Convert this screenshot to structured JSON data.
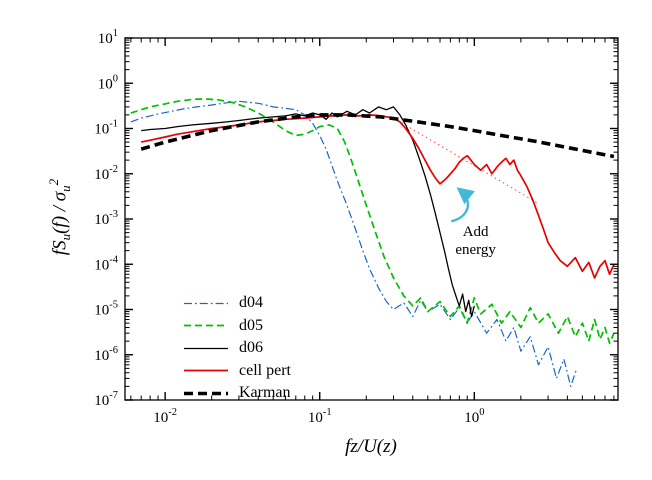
{
  "labels": {
    "xlabel": "fz/U(z)",
    "ylabel": {
      "a": "fS",
      "b": "u",
      "c": "(f) / σ",
      "d": "u",
      "e": "2"
    }
  },
  "chart_data": {
    "type": "line",
    "xscale": "log",
    "yscale": "log",
    "xlim": [
      0.0055,
      8.5
    ],
    "ylim": [
      1e-07,
      10
    ],
    "xlabel": "fz/U(z)",
    "ylabel": "fSu(f)/sigma_u^2",
    "grid": false,
    "legend_position": "lower-left-inside",
    "annotation": {
      "line1": "Add",
      "line2": "energy",
      "x": 1.02,
      "y": 0.00032,
      "arrow": {
        "x1": 0.72,
        "y1": 0.0009,
        "x2": 0.8,
        "y2": 0.0045,
        "color": "#45b8d8"
      }
    },
    "series": [
      {
        "name": "d04",
        "color": "#1a66cc",
        "width": 1.2,
        "dash": "8 3 1.8 3",
        "points": [
          [
            0.006,
            0.14
          ],
          [
            0.007,
            0.17
          ],
          [
            0.008,
            0.19
          ],
          [
            0.009,
            0.21
          ],
          [
            0.011,
            0.24
          ],
          [
            0.013,
            0.27
          ],
          [
            0.016,
            0.3
          ],
          [
            0.02,
            0.33
          ],
          [
            0.025,
            0.37
          ],
          [
            0.03,
            0.4
          ],
          [
            0.035,
            0.38
          ],
          [
            0.04,
            0.36
          ],
          [
            0.045,
            0.33
          ],
          [
            0.05,
            0.3
          ],
          [
            0.06,
            0.28
          ],
          [
            0.07,
            0.26
          ],
          [
            0.08,
            0.2
          ],
          [
            0.09,
            0.13
          ],
          [
            0.1,
            0.07
          ],
          [
            0.11,
            0.035
          ],
          [
            0.12,
            0.015
          ],
          [
            0.13,
            0.007
          ],
          [
            0.15,
            0.002
          ],
          [
            0.17,
            0.0006
          ],
          [
            0.19,
            0.0002
          ],
          [
            0.21,
            8e-05
          ],
          [
            0.24,
            3e-05
          ],
          [
            0.27,
            1.5e-05
          ],
          [
            0.3,
            1e-05
          ],
          [
            0.35,
            1.4e-05
          ],
          [
            0.4,
            7e-06
          ],
          [
            0.45,
            1.6e-05
          ],
          [
            0.5,
            9e-06
          ],
          [
            0.6,
            1.3e-05
          ],
          [
            0.7,
            6e-06
          ],
          [
            0.8,
            1.1e-05
          ],
          [
            0.9,
            5e-06
          ],
          [
            1.0,
            9e-06
          ],
          [
            1.2,
            3e-06
          ],
          [
            1.4,
            6e-06
          ],
          [
            1.6,
            2e-06
          ],
          [
            1.8,
            4e-06
          ],
          [
            2.0,
            1.2e-06
          ],
          [
            2.3,
            2.5e-06
          ],
          [
            2.6,
            6e-07
          ],
          [
            3.0,
            1.5e-06
          ],
          [
            3.4,
            3e-07
          ],
          [
            3.8,
            8e-07
          ],
          [
            4.2,
            2e-07
          ],
          [
            4.6,
            5e-07
          ]
        ]
      },
      {
        "name": "d05",
        "color": "#00c000",
        "width": 1.7,
        "dash": "7 4",
        "points": [
          [
            0.006,
            0.22
          ],
          [
            0.007,
            0.26
          ],
          [
            0.008,
            0.3
          ],
          [
            0.01,
            0.35
          ],
          [
            0.012,
            0.4
          ],
          [
            0.015,
            0.44
          ],
          [
            0.018,
            0.45
          ],
          [
            0.022,
            0.43
          ],
          [
            0.027,
            0.38
          ],
          [
            0.033,
            0.3
          ],
          [
            0.04,
            0.22
          ],
          [
            0.05,
            0.14
          ],
          [
            0.06,
            0.09
          ],
          [
            0.07,
            0.07
          ],
          [
            0.08,
            0.075
          ],
          [
            0.09,
            0.09
          ],
          [
            0.1,
            0.11
          ],
          [
            0.115,
            0.12
          ],
          [
            0.13,
            0.1
          ],
          [
            0.145,
            0.05
          ],
          [
            0.16,
            0.02
          ],
          [
            0.18,
            0.006
          ],
          [
            0.2,
            0.002
          ],
          [
            0.23,
            0.0005
          ],
          [
            0.26,
            0.00015
          ],
          [
            0.3,
            5e-05
          ],
          [
            0.35,
            2e-05
          ],
          [
            0.4,
            1.2e-05
          ],
          [
            0.45,
            1.8e-05
          ],
          [
            0.5,
            9e-06
          ],
          [
            0.6,
            1.5e-05
          ],
          [
            0.7,
            7e-06
          ],
          [
            0.8,
            1.2e-05
          ],
          [
            0.9,
            5e-06
          ],
          [
            1.0,
            1.8e-05
          ],
          [
            1.1,
            8e-06
          ],
          [
            1.3,
            1.3e-05
          ],
          [
            1.5,
            5e-06
          ],
          [
            1.7,
            9e-06
          ],
          [
            2.0,
            4e-06
          ],
          [
            2.3,
            1.1e-05
          ],
          [
            2.6,
            5e-06
          ],
          [
            3.0,
            8e-06
          ],
          [
            3.5,
            3e-06
          ],
          [
            4.0,
            7e-06
          ],
          [
            4.5,
            2.5e-06
          ],
          [
            5.0,
            5e-06
          ],
          [
            5.5,
            2e-06
          ],
          [
            6.0,
            6e-06
          ],
          [
            6.5,
            2.2e-06
          ],
          [
            7.0,
            4e-06
          ],
          [
            7.5,
            1.8e-06
          ],
          [
            8.0,
            3e-06
          ]
        ]
      },
      {
        "name": "d06",
        "color": "#000000",
        "width": 1.3,
        "dash": "",
        "points": [
          [
            0.007,
            0.09
          ],
          [
            0.008,
            0.095
          ],
          [
            0.01,
            0.1
          ],
          [
            0.012,
            0.11
          ],
          [
            0.015,
            0.12
          ],
          [
            0.02,
            0.13
          ],
          [
            0.025,
            0.14
          ],
          [
            0.03,
            0.15
          ],
          [
            0.04,
            0.17
          ],
          [
            0.05,
            0.18
          ],
          [
            0.06,
            0.19
          ],
          [
            0.07,
            0.21
          ],
          [
            0.08,
            0.19
          ],
          [
            0.09,
            0.22
          ],
          [
            0.1,
            0.2
          ],
          [
            0.11,
            0.16
          ],
          [
            0.12,
            0.22
          ],
          [
            0.13,
            0.18
          ],
          [
            0.15,
            0.24
          ],
          [
            0.17,
            0.2
          ],
          [
            0.19,
            0.26
          ],
          [
            0.21,
            0.22
          ],
          [
            0.24,
            0.3
          ],
          [
            0.27,
            0.26
          ],
          [
            0.3,
            0.3
          ],
          [
            0.33,
            0.2
          ],
          [
            0.36,
            0.12
          ],
          [
            0.4,
            0.055
          ],
          [
            0.44,
            0.022
          ],
          [
            0.48,
            0.009
          ],
          [
            0.52,
            0.0035
          ],
          [
            0.56,
            0.0013
          ],
          [
            0.6,
            0.0005
          ],
          [
            0.64,
            0.0002
          ],
          [
            0.68,
            8e-05
          ],
          [
            0.72,
            3.5e-05
          ],
          [
            0.76,
            2e-05
          ],
          [
            0.8,
            1.2e-05
          ],
          [
            0.84,
            2.2e-05
          ],
          [
            0.88,
            9e-06
          ],
          [
            0.92,
            1.6e-05
          ],
          [
            0.96,
            7e-06
          ],
          [
            1.0,
            1.2e-05
          ]
        ]
      },
      {
        "name": "cell pert",
        "color": "#e80000",
        "width": 1.7,
        "dash": "",
        "points": [
          [
            0.007,
            0.05
          ],
          [
            0.008,
            0.055
          ],
          [
            0.01,
            0.065
          ],
          [
            0.012,
            0.075
          ],
          [
            0.015,
            0.085
          ],
          [
            0.02,
            0.1
          ],
          [
            0.025,
            0.11
          ],
          [
            0.03,
            0.12
          ],
          [
            0.04,
            0.14
          ],
          [
            0.05,
            0.15
          ],
          [
            0.06,
            0.16
          ],
          [
            0.08,
            0.17
          ],
          [
            0.1,
            0.18
          ],
          [
            0.12,
            0.19
          ],
          [
            0.15,
            0.2
          ],
          [
            0.18,
            0.19
          ],
          [
            0.21,
            0.2
          ],
          [
            0.25,
            0.19
          ],
          [
            0.3,
            0.17
          ],
          [
            0.33,
            0.14
          ],
          [
            0.36,
            0.1
          ],
          [
            0.4,
            0.06
          ],
          [
            0.44,
            0.035
          ],
          [
            0.48,
            0.02
          ],
          [
            0.52,
            0.012
          ],
          [
            0.56,
            0.008
          ],
          [
            0.6,
            0.006
          ],
          [
            0.65,
            0.0075
          ],
          [
            0.7,
            0.01
          ],
          [
            0.75,
            0.013
          ],
          [
            0.8,
            0.018
          ],
          [
            0.85,
            0.022
          ],
          [
            0.9,
            0.025
          ],
          [
            0.95,
            0.02
          ],
          [
            1.0,
            0.016
          ],
          [
            1.1,
            0.012
          ],
          [
            1.2,
            0.016
          ],
          [
            1.3,
            0.01
          ],
          [
            1.4,
            0.014
          ],
          [
            1.5,
            0.018
          ],
          [
            1.6,
            0.022
          ],
          [
            1.7,
            0.016
          ],
          [
            1.8,
            0.02
          ],
          [
            1.9,
            0.012
          ],
          [
            2.0,
            0.009
          ],
          [
            2.2,
            0.005
          ],
          [
            2.4,
            0.0025
          ],
          [
            2.6,
            0.0012
          ],
          [
            2.8,
            0.0006
          ],
          [
            3.0,
            0.0003
          ],
          [
            3.3,
            0.00018
          ],
          [
            3.6,
            0.00012
          ],
          [
            4.0,
            9e-05
          ],
          [
            4.5,
            0.00014
          ],
          [
            5.0,
            7e-05
          ],
          [
            5.5,
            0.00011
          ],
          [
            6.0,
            5e-05
          ],
          [
            6.5,
            9e-05
          ],
          [
            7.0,
            0.00012
          ],
          [
            7.5,
            6e-05
          ],
          [
            8.0,
            0.0001
          ]
        ]
      },
      {
        "name": "Karman",
        "color": "#000000",
        "width": 3.6,
        "dash": "9 5",
        "points": [
          [
            0.007,
            0.035
          ],
          [
            0.01,
            0.05
          ],
          [
            0.02,
            0.09
          ],
          [
            0.04,
            0.14
          ],
          [
            0.07,
            0.18
          ],
          [
            0.1,
            0.2
          ],
          [
            0.15,
            0.2
          ],
          [
            0.25,
            0.18
          ],
          [
            0.4,
            0.145
          ],
          [
            0.7,
            0.11
          ],
          [
            1.0,
            0.09
          ],
          [
            1.5,
            0.07
          ],
          [
            2.5,
            0.052
          ],
          [
            4.0,
            0.038
          ],
          [
            6.0,
            0.029
          ],
          [
            8.0,
            0.024
          ]
        ]
      },
      {
        "name": "energy-guide-line",
        "legend": false,
        "color": "#ff5050",
        "width": 1.1,
        "dash": "1.5 3.2",
        "points": [
          [
            0.3,
            0.17
          ],
          [
            2.6,
            0.0022
          ]
        ]
      }
    ]
  }
}
